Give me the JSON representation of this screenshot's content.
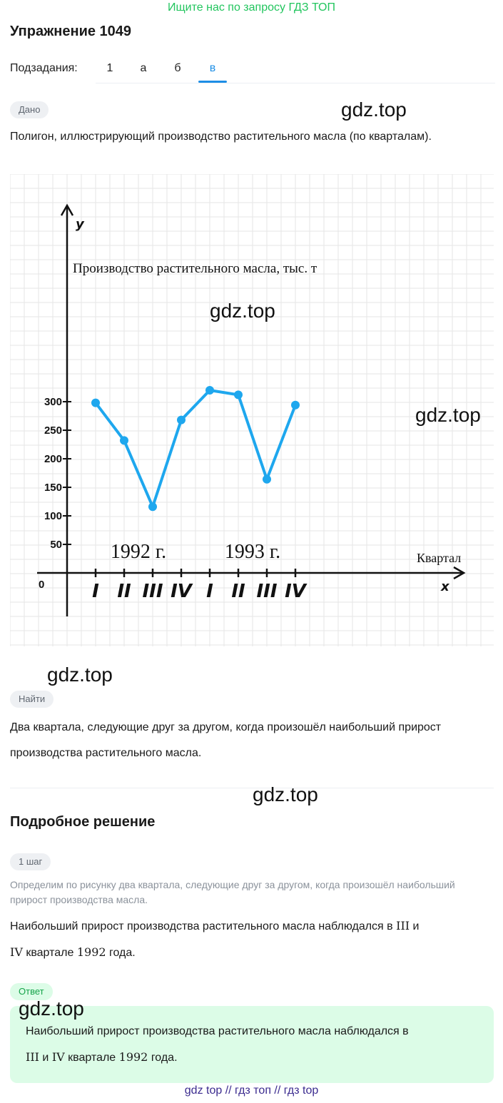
{
  "banner": "Ищите нас по запросу ГДЗ ТОП",
  "title": "Упражнение 1049",
  "subtasks": {
    "label": "Подзадания:",
    "tabs": [
      "1",
      "а",
      "б",
      "в"
    ],
    "active_index": 3
  },
  "given": {
    "badge": "Дано",
    "text": "Полигон, иллюстрирующий производство растительного масла (по кварталам)."
  },
  "find": {
    "badge": "Найти",
    "text": "Два квартала, следующие друг за другом, когда произошёл наибольший прирост производства растительного масла."
  },
  "watermark": "gdz.top",
  "solution": {
    "title": "Подробное решение",
    "step_badge": "1 шаг",
    "step_hint": "Определим по рисунку два квартала, следующие друг за другом, когда произошёл наибольший прирост производства масла.",
    "step_text_pre": "Наибольший прирост производства растительного масла наблюдался в",
    "step_q1": "III",
    "step_and": "и",
    "step_q2": "IV",
    "step_text_mid": "квартале",
    "step_year": "1992",
    "step_text_post": "года."
  },
  "answer": {
    "badge": "Ответ",
    "text_pre": "Наибольший прирост производства растительного масла наблюдался в",
    "q1": "III",
    "and": "и",
    "q2": "IV",
    "text_mid": "квартале",
    "year": "1992",
    "text_post": "года."
  },
  "footer": "gdz top  //  гдз топ  //  гдз top",
  "colors": {
    "banner": "#22c55e",
    "accent": "#1d8ee6",
    "series": "#1ea7ee",
    "answer_bg": "#dcfce7"
  },
  "chart_data": {
    "type": "line",
    "title": "Производство растительного масла, тыс. т",
    "xlabel": "Квартал",
    "ylabel": "y",
    "x_axis_letter": "x",
    "origin_label": "0",
    "categories": [
      "I",
      "II",
      "III",
      "IV",
      "I",
      "II",
      "III",
      "IV"
    ],
    "year_labels": [
      "1992 г.",
      "1993 г."
    ],
    "y_ticks": [
      50,
      100,
      150,
      200,
      250,
      300
    ],
    "values": [
      298,
      232,
      116,
      268,
      320,
      312,
      164,
      294
    ],
    "ylim": [
      0,
      300
    ],
    "grid": true
  }
}
